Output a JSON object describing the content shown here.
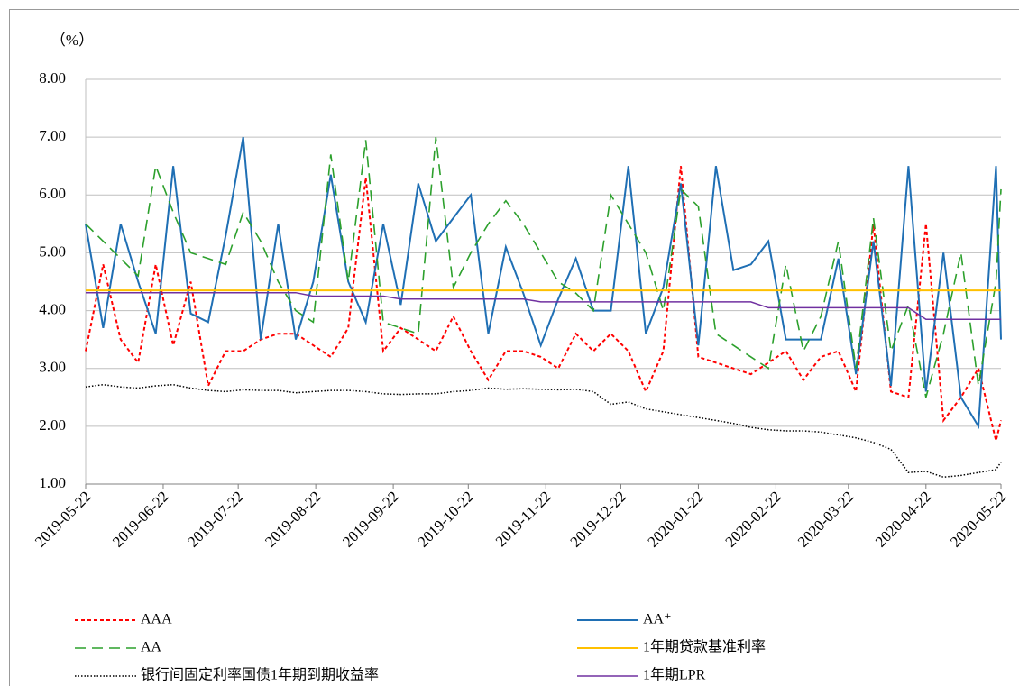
{
  "chart_data": {
    "type": "line",
    "y_label": "（%）",
    "x": [
      "2019-05-22",
      "2019-05-29",
      "2019-06-05",
      "2019-06-12",
      "2019-06-19",
      "2019-06-26",
      "2019-07-03",
      "2019-07-10",
      "2019-07-17",
      "2019-07-24",
      "2019-07-31",
      "2019-08-07",
      "2019-08-14",
      "2019-08-21",
      "2019-08-28",
      "2019-09-04",
      "2019-09-11",
      "2019-09-18",
      "2019-09-25",
      "2019-10-02",
      "2019-10-09",
      "2019-10-16",
      "2019-10-23",
      "2019-10-30",
      "2019-11-06",
      "2019-11-13",
      "2019-11-20",
      "2019-11-27",
      "2019-12-04",
      "2019-12-11",
      "2019-12-18",
      "2019-12-25",
      "2020-01-01",
      "2020-01-08",
      "2020-01-15",
      "2020-01-22",
      "2020-01-29",
      "2020-02-05",
      "2020-02-12",
      "2020-02-19",
      "2020-02-26",
      "2020-03-04",
      "2020-03-11",
      "2020-03-18",
      "2020-03-25",
      "2020-04-01",
      "2020-04-08",
      "2020-04-15",
      "2020-04-22",
      "2020-04-29",
      "2020-05-06",
      "2020-05-13",
      "2020-05-20",
      "2020-05-22"
    ],
    "xlim": [
      "2019-05-22",
      "2020-05-22"
    ],
    "xticks": [
      "2019-05-22",
      "2019-06-22",
      "2019-07-22",
      "2019-08-22",
      "2019-09-22",
      "2019-10-22",
      "2019-11-22",
      "2019-12-22",
      "2020-01-22",
      "2020-02-22",
      "2020-03-22",
      "2020-04-22",
      "2020-05-22"
    ],
    "ylim": [
      1,
      8
    ],
    "yticks": [
      {
        "value": 1,
        "label": "1.00"
      },
      {
        "value": 2,
        "label": "2.00"
      },
      {
        "value": 3,
        "label": "3.00"
      },
      {
        "value": 4,
        "label": "4.00"
      },
      {
        "value": 5,
        "label": "5.00"
      },
      {
        "value": 6,
        "label": "6.00"
      },
      {
        "value": 7,
        "label": "7.00"
      },
      {
        "value": 8,
        "label": "8.00"
      }
    ],
    "grid": true,
    "series": [
      {
        "name": "AAA",
        "color": "#ff0000",
        "values": [
          3.3,
          4.8,
          3.5,
          3.1,
          4.8,
          3.4,
          4.5,
          2.7,
          3.3,
          3.3,
          3.5,
          3.6,
          3.6,
          3.4,
          3.2,
          3.7,
          6.3,
          3.3,
          3.7,
          3.5,
          3.3,
          3.9,
          3.3,
          2.8,
          3.3,
          3.3,
          3.2,
          3.0,
          3.6,
          3.3,
          3.6,
          3.3,
          2.6,
          3.3,
          6.5,
          3.2,
          3.1,
          3.0,
          2.9,
          3.1,
          3.3,
          2.8,
          3.2,
          3.3,
          2.6,
          5.5,
          2.6,
          2.5,
          5.5,
          2.1,
          2.5,
          3.0,
          1.75,
          2.1
        ]
      },
      {
        "name": "AA⁺",
        "color": "#1f6fb4",
        "values": [
          5.5,
          3.7,
          5.5,
          4.5,
          3.6,
          6.5,
          3.95,
          3.8,
          5.3,
          7.0,
          3.5,
          5.5,
          3.5,
          4.5,
          6.35,
          4.5,
          3.8,
          5.5,
          4.1,
          6.2,
          5.2,
          5.6,
          6.0,
          3.6,
          5.1,
          4.3,
          3.4,
          4.2,
          4.9,
          4.0,
          4.0,
          6.5,
          3.6,
          4.4,
          6.2,
          3.4,
          6.5,
          4.7,
          4.8,
          5.2,
          3.5,
          3.5,
          3.5,
          4.9,
          2.9,
          5.2,
          2.7,
          6.5,
          2.6,
          5.0,
          2.5,
          2.0,
          6.5,
          3.5
        ]
      },
      {
        "name": "AA",
        "color": "#2ca02c",
        "values": [
          5.5,
          5.2,
          4.9,
          4.6,
          6.5,
          5.7,
          5.0,
          4.9,
          4.8,
          5.7,
          5.2,
          4.5,
          4.0,
          3.8,
          6.7,
          4.5,
          6.95,
          3.8,
          3.7,
          3.6,
          7.0,
          4.4,
          5.0,
          5.5,
          5.9,
          5.5,
          5.0,
          4.5,
          4.3,
          4.0,
          6.0,
          5.5,
          5.0,
          4.0,
          6.1,
          5.8,
          3.6,
          3.4,
          3.2,
          3.0,
          4.8,
          3.3,
          3.9,
          5.2,
          3.0,
          5.6,
          3.3,
          4.1,
          2.5,
          3.6,
          5.0,
          2.7,
          4.5,
          6.1
        ]
      },
      {
        "name": "1年期贷款基准利率",
        "color": "#ffc000",
        "values": [
          4.35,
          4.35,
          4.35,
          4.35,
          4.35,
          4.35,
          4.35,
          4.35,
          4.35,
          4.35,
          4.35,
          4.35,
          4.35,
          4.35,
          4.35,
          4.35,
          4.35,
          4.35,
          4.35,
          4.35,
          4.35,
          4.35,
          4.35,
          4.35,
          4.35,
          4.35,
          4.35,
          4.35,
          4.35,
          4.35,
          4.35,
          4.35,
          4.35,
          4.35,
          4.35,
          4.35,
          4.35,
          4.35,
          4.35,
          4.35,
          4.35,
          4.35,
          4.35,
          4.35,
          4.35,
          4.35,
          4.35,
          4.35,
          4.35,
          4.35,
          4.35,
          4.35,
          4.35,
          4.35
        ]
      },
      {
        "name": "银行间固定利率国债1年期到期收益率",
        "color": "#000000",
        "values": [
          2.68,
          2.72,
          2.68,
          2.66,
          2.7,
          2.72,
          2.66,
          2.62,
          2.6,
          2.63,
          2.62,
          2.62,
          2.58,
          2.6,
          2.62,
          2.62,
          2.6,
          2.56,
          2.55,
          2.56,
          2.56,
          2.6,
          2.62,
          2.66,
          2.64,
          2.65,
          2.64,
          2.63,
          2.64,
          2.6,
          2.38,
          2.42,
          2.3,
          2.25,
          2.2,
          2.15,
          2.1,
          2.05,
          1.98,
          1.94,
          1.92,
          1.92,
          1.9,
          1.85,
          1.8,
          1.72,
          1.6,
          1.2,
          1.22,
          1.12,
          1.15,
          1.2,
          1.25,
          1.38
        ]
      },
      {
        "name": "1年期LPR",
        "color": "#7030a0",
        "values": [
          4.31,
          4.31,
          4.31,
          4.31,
          4.31,
          4.31,
          4.31,
          4.31,
          4.31,
          4.31,
          4.31,
          4.31,
          4.31,
          4.25,
          4.25,
          4.25,
          4.25,
          4.25,
          4.2,
          4.2,
          4.2,
          4.2,
          4.2,
          4.2,
          4.2,
          4.2,
          4.15,
          4.15,
          4.15,
          4.15,
          4.15,
          4.15,
          4.15,
          4.15,
          4.15,
          4.15,
          4.15,
          4.15,
          4.15,
          4.05,
          4.05,
          4.05,
          4.05,
          4.05,
          4.05,
          4.05,
          4.05,
          4.05,
          3.85,
          3.85,
          3.85,
          3.85,
          3.85,
          3.85
        ]
      }
    ]
  }
}
